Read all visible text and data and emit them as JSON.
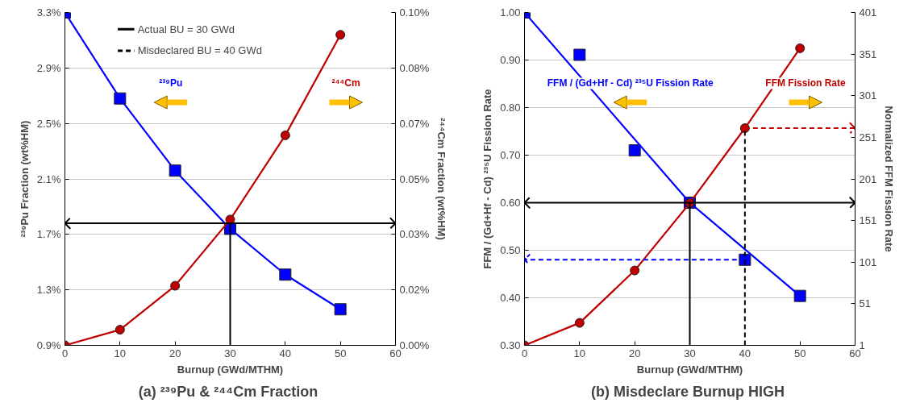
{
  "chart_data": [
    {
      "type": "line",
      "title": "(a)  ²³⁹Pu & ²⁴⁴Cm Fraction",
      "xlabel": "Burnup (GWd/MTHM)",
      "ylabel": "²³⁹Pu Fraction (wt%HM)",
      "y2label": "²⁴⁴Cm Fraction (wt%HM)",
      "x": [
        0,
        10,
        20,
        30,
        40,
        50
      ],
      "xlim": [
        0,
        60
      ],
      "xticks": [
        0,
        10,
        20,
        30,
        40,
        50,
        60
      ],
      "ylim": [
        0.9,
        3.3
      ],
      "yticks": [
        {
          "value": 0.9,
          "label": "0.9%"
        },
        {
          "value": 1.3,
          "label": "1.3%"
        },
        {
          "value": 1.7,
          "label": "1.7%"
        },
        {
          "value": 2.1,
          "label": "2.1%"
        },
        {
          "value": 2.5,
          "label": "2.5%"
        },
        {
          "value": 2.9,
          "label": "2.9%"
        },
        {
          "value": 3.3,
          "label": "3.3%"
        }
      ],
      "y2lim": [
        0,
        0.1
      ],
      "y2ticks": [
        {
          "value": 0,
          "label": "0.00%"
        },
        {
          "value": 0.016667,
          "label": "0.02%"
        },
        {
          "value": 0.033333,
          "label": "0.03%"
        },
        {
          "value": 0.05,
          "label": "0.05%"
        },
        {
          "value": 0.066667,
          "label": "0.07%"
        },
        {
          "value": 0.083333,
          "label": "0.08%"
        },
        {
          "value": 0.1,
          "label": "0.10%"
        }
      ],
      "grid": "y",
      "series": [
        {
          "name": "²³⁹Pu",
          "color": "#0000ff",
          "marker": "square",
          "values": [
            3.3,
            2.68,
            2.16,
            1.74,
            1.41,
            1.16
          ]
        },
        {
          "name": "²⁴⁴Cm",
          "color": "#c00000",
          "marker": "circle",
          "axis": "y2",
          "values": [
            0,
            0.0047,
            0.0179,
            0.0378,
            0.0631,
            0.0933
          ]
        }
      ],
      "ref_lines": [
        {
          "axis": "y",
          "value": 1.78,
          "color": "#000000",
          "line_style": "solid"
        },
        {
          "axis": "x",
          "value": 30,
          "color": "#000000",
          "line_style": "solid"
        }
      ],
      "annotations": [
        "Actual BU = 30 GWd",
        "Misdeclared BU = 40 GWd"
      ]
    },
    {
      "type": "line",
      "title": "(b)  Misdeclare Burnup HIGH",
      "xlabel": "Burnup (GWd/MTHM)",
      "ylabel": "FFM / (Gd+Hf - Cd) ²³⁵U Fission Rate",
      "y2label": "Normalized FFM Fission Rate",
      "x": [
        0,
        10,
        20,
        30,
        40,
        50
      ],
      "xlim": [
        0,
        60
      ],
      "xticks": [
        0,
        10,
        20,
        30,
        40,
        50,
        60
      ],
      "ylim": [
        0.3,
        1.0
      ],
      "yticks": [
        {
          "value": 0.3,
          "label": "0.30"
        },
        {
          "value": 0.4,
          "label": "0.40"
        },
        {
          "value": 0.5,
          "label": "0.50"
        },
        {
          "value": 0.6,
          "label": "0.60"
        },
        {
          "value": 0.7,
          "label": "0.70"
        },
        {
          "value": 0.8,
          "label": "0.80"
        },
        {
          "value": 0.9,
          "label": "0.90"
        },
        {
          "value": 1.0,
          "label": "1.00"
        }
      ],
      "y2lim": [
        1,
        401
      ],
      "y2ticks": [
        1,
        51,
        101,
        151,
        201,
        251,
        301,
        351,
        401
      ],
      "grid": "y",
      "series": [
        {
          "name": "FFM / (Gd+Hf - Cd) ²³⁵U Fission Rate",
          "type": "scatter",
          "color": "#0000ff",
          "marker": "square",
          "values": [
            1.0,
            0.911,
            0.71,
            0.6,
            0.48,
            0.404
          ]
        },
        {
          "type": "line",
          "color": "#0000ff",
          "marker": "none",
          "x": [
            0,
            30,
            50
          ],
          "values": [
            1.0,
            0.6,
            0.404
          ]
        },
        {
          "name": "FFM Fission Rate",
          "color": "#c00000",
          "marker": "circle",
          "axis": "y2",
          "values": [
            1,
            28,
            91,
            172,
            262,
            358
          ]
        }
      ],
      "ref_lines": [
        {
          "axis": "y",
          "value": 0.6,
          "color": "#000000",
          "line_style": "solid"
        },
        {
          "axis": "x",
          "value": 30,
          "color": "#000000",
          "line_style": "solid"
        },
        {
          "axis": "y",
          "value": 0.48,
          "color": "#0000ff",
          "line_style": "dashed"
        },
        {
          "axis": "y2",
          "value": 262,
          "color": "#c00000",
          "line_style": "dashed"
        },
        {
          "axis": "x",
          "value": 40,
          "color": "#000000",
          "line_style": "dashed"
        }
      ]
    }
  ]
}
